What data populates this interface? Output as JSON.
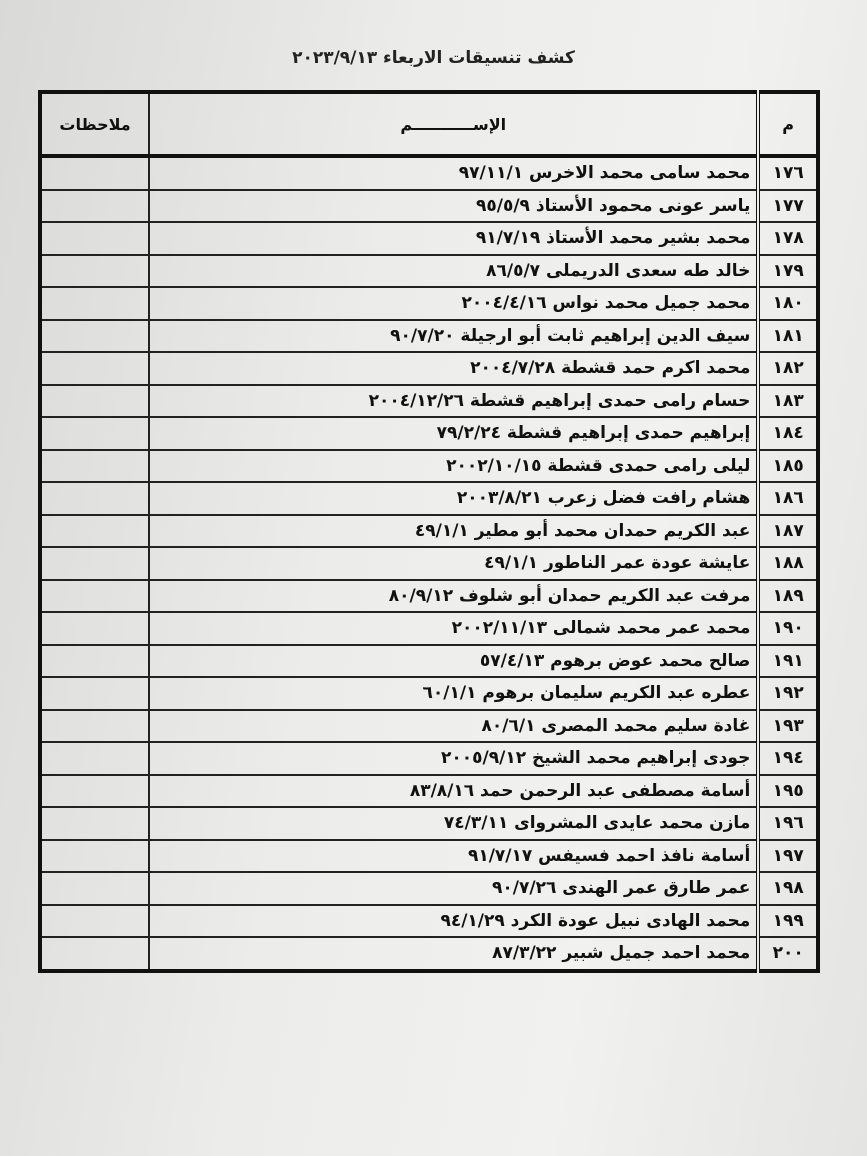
{
  "title": "كشف تنسيقات الاربعاء ٢٠٢٣/٩/١٣",
  "headers": {
    "number": "م",
    "name": "الإســـــــــــم",
    "notes": "ملاحظات"
  },
  "rows": [
    {
      "n": "١٧٦",
      "name": "محمد سامى محمد الاخرس ٩٧/١١/١",
      "notes": ""
    },
    {
      "n": "١٧٧",
      "name": "ياسر عونى محمود الأستاذ ٩٥/٥/٩",
      "notes": ""
    },
    {
      "n": "١٧٨",
      "name": "محمد بشير محمد الأستاذ ٩١/٧/١٩",
      "notes": ""
    },
    {
      "n": "١٧٩",
      "name": "خالد طه سعدى الدريملى ٨٦/٥/٧",
      "notes": ""
    },
    {
      "n": "١٨٠",
      "name": "محمد جميل محمد نواس ٢٠٠٤/٤/١٦",
      "notes": ""
    },
    {
      "n": "١٨١",
      "name": "سيف الدين إبراهيم ثابت أبو ارجيلة ٩٠/٧/٢٠",
      "notes": ""
    },
    {
      "n": "١٨٢",
      "name": "محمد اكرم حمد قشطة ٢٠٠٤/٧/٢٨",
      "notes": ""
    },
    {
      "n": "١٨٣",
      "name": "حسام رامى حمدى إبراهيم قشطة ٢٠٠٤/١٢/٢٦",
      "notes": ""
    },
    {
      "n": "١٨٤",
      "name": "إبراهيم حمدى إبراهيم قشطة ٧٩/٢/٢٤",
      "notes": ""
    },
    {
      "n": "١٨٥",
      "name": "ليلى رامى حمدى قشطة ٢٠٠٢/١٠/١٥",
      "notes": ""
    },
    {
      "n": "١٨٦",
      "name": "هشام رافت فضل زعرب ٢٠٠٣/٨/٢١",
      "notes": ""
    },
    {
      "n": "١٨٧",
      "name": "عبد الكريم حمدان محمد أبو مطير ٤٩/١/١",
      "notes": ""
    },
    {
      "n": "١٨٨",
      "name": "عايشة عودة عمر الناطور ٤٩/١/١",
      "notes": ""
    },
    {
      "n": "١٨٩",
      "name": "مرفت عبد الكريم حمدان أبو شلوف ٨٠/٩/١٢",
      "notes": ""
    },
    {
      "n": "١٩٠",
      "name": "محمد عمر محمد شمالى ٢٠٠٢/١١/١٣",
      "notes": ""
    },
    {
      "n": "١٩١",
      "name": "صالح محمد عوض برهوم ٥٧/٤/١٣",
      "notes": ""
    },
    {
      "n": "١٩٢",
      "name": "عطره عبد الكريم سليمان برهوم ٦٠/١/١",
      "notes": ""
    },
    {
      "n": "١٩٣",
      "name": "غادة سليم محمد المصرى ٨٠/٦/١",
      "notes": ""
    },
    {
      "n": "١٩٤",
      "name": "جودى إبراهيم محمد الشيخ ٢٠٠٥/٩/١٢",
      "notes": ""
    },
    {
      "n": "١٩٥",
      "name": "أسامة مصطفى عبد الرحمن حمد ٨٣/٨/١٦",
      "notes": ""
    },
    {
      "n": "١٩٦",
      "name": "مازن محمد عايدى المشرواى ٧٤/٣/١١",
      "notes": ""
    },
    {
      "n": "١٩٧",
      "name": "أسامة نافذ احمد فسيفس ٩١/٧/١٧",
      "notes": ""
    },
    {
      "n": "١٩٨",
      "name": "عمر طارق عمر الهندى ٩٠/٧/٢٦",
      "notes": ""
    },
    {
      "n": "١٩٩",
      "name": "محمد الهادى نبيل عودة الكرد ٩٤/١/٢٩",
      "notes": ""
    },
    {
      "n": "٢٠٠",
      "name": "محمد احمد جميل شبير ٨٧/٣/٢٢",
      "notes": ""
    }
  ]
}
